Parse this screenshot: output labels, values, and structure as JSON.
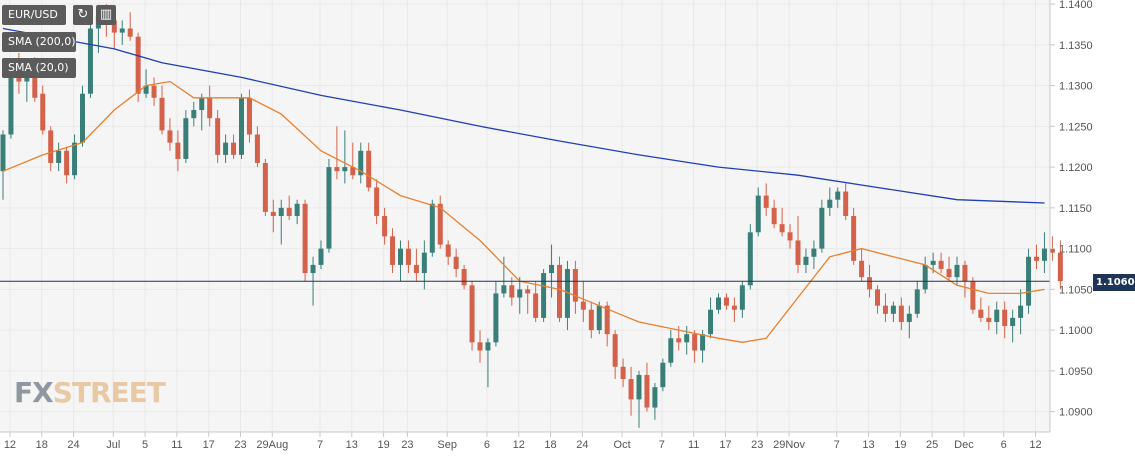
{
  "toolbar": {
    "symbol": "EUR/USD",
    "indicators": [
      "SMA (200,0)",
      "SMA (20,0)"
    ]
  },
  "logo": {
    "part1": "FX",
    "part2": "STREET"
  },
  "current_price_label": "1.1060",
  "colors": {
    "up": "#3a7f77",
    "down": "#d4614a",
    "sma200": "#1f3fb2",
    "sma20": "#e8802f",
    "price_line": "#1f3557",
    "grid": "#e9e9e9"
  },
  "chart_data": {
    "type": "candlestick",
    "ylim": [
      1.0875,
      1.1405
    ],
    "yticks": [
      "1.1400",
      "1.1350",
      "1.1300",
      "1.1250",
      "1.1200",
      "1.1150",
      "1.1100",
      "1.1050",
      "1.1000",
      "1.0950",
      "1.0900"
    ],
    "xticks": [
      {
        "label": "12",
        "i": 1
      },
      {
        "label": "18",
        "i": 5
      },
      {
        "label": "24",
        "i": 9
      },
      {
        "label": "Jul",
        "i": 14
      },
      {
        "label": "5",
        "i": 18
      },
      {
        "label": "11",
        "i": 22
      },
      {
        "label": "17",
        "i": 26
      },
      {
        "label": "23",
        "i": 30
      },
      {
        "label": "29Aug",
        "i": 34
      },
      {
        "label": "7",
        "i": 40
      },
      {
        "label": "13",
        "i": 44
      },
      {
        "label": "19",
        "i": 48
      },
      {
        "label": "23",
        "i": 51
      },
      {
        "label": "Sep",
        "i": 56
      },
      {
        "label": "6",
        "i": 61
      },
      {
        "label": "12",
        "i": 65
      },
      {
        "label": "18",
        "i": 69
      },
      {
        "label": "24",
        "i": 73
      },
      {
        "label": "Oct",
        "i": 78
      },
      {
        "label": "7",
        "i": 83
      },
      {
        "label": "11",
        "i": 87
      },
      {
        "label": "17",
        "i": 91
      },
      {
        "label": "23",
        "i": 95
      },
      {
        "label": "29Nov",
        "i": 99
      },
      {
        "label": "7",
        "i": 105
      },
      {
        "label": "13",
        "i": 109
      },
      {
        "label": "19",
        "i": 113
      },
      {
        "label": "25",
        "i": 117
      },
      {
        "label": "Dec",
        "i": 121
      },
      {
        "label": "6",
        "i": 126
      },
      {
        "label": "12",
        "i": 130
      }
    ],
    "current_price": 1.106,
    "candles": [
      [
        1.1195,
        1.1245,
        1.116,
        1.124
      ],
      [
        1.124,
        1.133,
        1.1235,
        1.132
      ],
      [
        1.132,
        1.134,
        1.129,
        1.1305
      ],
      [
        1.1305,
        1.133,
        1.128,
        1.1325
      ],
      [
        1.1325,
        1.1335,
        1.128,
        1.1285
      ],
      [
        1.129,
        1.13,
        1.124,
        1.1245
      ],
      [
        1.1245,
        1.125,
        1.1195,
        1.1205
      ],
      [
        1.1205,
        1.123,
        1.1195,
        1.122
      ],
      [
        1.122,
        1.1225,
        1.118,
        1.119
      ],
      [
        1.119,
        1.124,
        1.1185,
        1.123
      ],
      [
        1.123,
        1.13,
        1.1225,
        1.129
      ],
      [
        1.129,
        1.138,
        1.1285,
        1.137
      ],
      [
        1.137,
        1.1395,
        1.134,
        1.1385
      ],
      [
        1.1385,
        1.14,
        1.136,
        1.138
      ],
      [
        1.138,
        1.1385,
        1.1345,
        1.1365
      ],
      [
        1.1365,
        1.138,
        1.135,
        1.137
      ],
      [
        1.137,
        1.139,
        1.1355,
        1.136
      ],
      [
        1.136,
        1.1365,
        1.128,
        1.129
      ],
      [
        1.129,
        1.132,
        1.1285,
        1.13
      ],
      [
        1.13,
        1.131,
        1.1275,
        1.1285
      ],
      [
        1.1285,
        1.13,
        1.124,
        1.1245
      ],
      [
        1.1245,
        1.126,
        1.122,
        1.123
      ],
      [
        1.123,
        1.1245,
        1.1195,
        1.121
      ],
      [
        1.121,
        1.127,
        1.1205,
        1.126
      ],
      [
        1.126,
        1.128,
        1.125,
        1.127
      ],
      [
        1.127,
        1.129,
        1.1245,
        1.1285
      ],
      [
        1.1285,
        1.13,
        1.125,
        1.126
      ],
      [
        1.126,
        1.127,
        1.1205,
        1.1215
      ],
      [
        1.1215,
        1.124,
        1.1205,
        1.123
      ],
      [
        1.123,
        1.124,
        1.121,
        1.1215
      ],
      [
        1.1215,
        1.129,
        1.121,
        1.1285
      ],
      [
        1.1285,
        1.1295,
        1.123,
        1.124
      ],
      [
        1.124,
        1.125,
        1.12,
        1.1205
      ],
      [
        1.1205,
        1.121,
        1.114,
        1.1145
      ],
      [
        1.1145,
        1.116,
        1.112,
        1.114
      ],
      [
        1.114,
        1.116,
        1.1105,
        1.115
      ],
      [
        1.115,
        1.1165,
        1.1135,
        1.114
      ],
      [
        1.114,
        1.116,
        1.113,
        1.1155
      ],
      [
        1.1155,
        1.116,
        1.106,
        1.107
      ],
      [
        1.107,
        1.109,
        1.103,
        1.108
      ],
      [
        1.108,
        1.111,
        1.1075,
        1.11
      ],
      [
        1.11,
        1.121,
        1.1095,
        1.12
      ],
      [
        1.12,
        1.125,
        1.1185,
        1.1195
      ],
      [
        1.1195,
        1.1245,
        1.118,
        1.12
      ],
      [
        1.12,
        1.123,
        1.1185,
        1.119
      ],
      [
        1.119,
        1.123,
        1.118,
        1.122
      ],
      [
        1.122,
        1.123,
        1.117,
        1.1175
      ],
      [
        1.1175,
        1.1185,
        1.113,
        1.114
      ],
      [
        1.114,
        1.115,
        1.1105,
        1.1115
      ],
      [
        1.1115,
        1.1125,
        1.107,
        1.108
      ],
      [
        1.108,
        1.111,
        1.106,
        1.11
      ],
      [
        1.11,
        1.111,
        1.107,
        1.108
      ],
      [
        1.108,
        1.11,
        1.106,
        1.107
      ],
      [
        1.107,
        1.111,
        1.105,
        1.1095
      ],
      [
        1.1095,
        1.116,
        1.109,
        1.1155
      ],
      [
        1.1155,
        1.1165,
        1.11,
        1.1105
      ],
      [
        1.1105,
        1.111,
        1.108,
        1.109
      ],
      [
        1.109,
        1.11,
        1.1065,
        1.1075
      ],
      [
        1.1075,
        1.108,
        1.105,
        1.1055
      ],
      [
        1.1055,
        1.106,
        1.0975,
        1.0985
      ],
      [
        1.0985,
        1.1,
        1.096,
        1.0975
      ],
      [
        1.0975,
        1.099,
        1.093,
        1.0985
      ],
      [
        1.0985,
        1.106,
        1.098,
        1.1045
      ],
      [
        1.1045,
        1.109,
        1.104,
        1.1055
      ],
      [
        1.1055,
        1.1065,
        1.103,
        1.104
      ],
      [
        1.104,
        1.1065,
        1.102,
        1.105
      ],
      [
        1.105,
        1.1055,
        1.102,
        1.1045
      ],
      [
        1.1045,
        1.106,
        1.101,
        1.1015
      ],
      [
        1.1015,
        1.1075,
        1.101,
        1.107
      ],
      [
        1.107,
        1.1105,
        1.104,
        1.108
      ],
      [
        1.108,
        1.109,
        1.101,
        1.1015
      ],
      [
        1.1015,
        1.1085,
        1.1,
        1.1075
      ],
      [
        1.1075,
        1.1085,
        1.102,
        1.1035
      ],
      [
        1.1035,
        1.106,
        1.101,
        1.1025
      ],
      [
        1.1025,
        1.1035,
        1.099,
        1.1
      ],
      [
        1.1,
        1.1035,
        1.0995,
        1.103
      ],
      [
        1.103,
        1.1035,
        1.098,
        1.0995
      ],
      [
        1.0995,
        1.1,
        1.094,
        1.0955
      ],
      [
        1.0955,
        1.0965,
        1.093,
        1.094
      ],
      [
        1.094,
        1.0955,
        1.0895,
        1.0915
      ],
      [
        1.0915,
        1.095,
        1.088,
        1.0945
      ],
      [
        1.0945,
        1.096,
        1.09,
        1.0905
      ],
      [
        1.0905,
        1.0935,
        1.089,
        1.093
      ],
      [
        1.093,
        1.0965,
        1.0925,
        1.096
      ],
      [
        1.096,
        1.1,
        1.0955,
        1.099
      ],
      [
        1.099,
        1.1005,
        1.0975,
        1.0985
      ],
      [
        1.0985,
        1.1005,
        1.097,
        1.0995
      ],
      [
        1.0995,
        1.1,
        1.096,
        1.0975
      ],
      [
        1.0975,
        1.1,
        1.096,
        1.0995
      ],
      [
        1.0995,
        1.104,
        1.099,
        1.1025
      ],
      [
        1.1025,
        1.1045,
        1.102,
        1.104
      ],
      [
        1.104,
        1.1045,
        1.1025,
        1.103
      ],
      [
        1.103,
        1.104,
        1.101,
        1.1025
      ],
      [
        1.1025,
        1.106,
        1.1015,
        1.1055
      ],
      [
        1.1055,
        1.113,
        1.105,
        1.112
      ],
      [
        1.112,
        1.1175,
        1.1115,
        1.1165
      ],
      [
        1.1165,
        1.118,
        1.114,
        1.115
      ],
      [
        1.115,
        1.116,
        1.1125,
        1.113
      ],
      [
        1.113,
        1.115,
        1.1115,
        1.112
      ],
      [
        1.112,
        1.113,
        1.11,
        1.111
      ],
      [
        1.111,
        1.114,
        1.107,
        1.108
      ],
      [
        1.108,
        1.11,
        1.107,
        1.109
      ],
      [
        1.109,
        1.111,
        1.1075,
        1.11
      ],
      [
        1.11,
        1.116,
        1.1095,
        1.115
      ],
      [
        1.115,
        1.1175,
        1.114,
        1.116
      ],
      [
        1.116,
        1.1175,
        1.115,
        1.117
      ],
      [
        1.117,
        1.118,
        1.1135,
        1.114
      ],
      [
        1.114,
        1.115,
        1.108,
        1.1085
      ],
      [
        1.1085,
        1.11,
        1.106,
        1.1065
      ],
      [
        1.1065,
        1.108,
        1.104,
        1.105
      ],
      [
        1.105,
        1.1055,
        1.102,
        1.103
      ],
      [
        1.103,
        1.1045,
        1.101,
        1.102
      ],
      [
        1.102,
        1.1035,
        1.101,
        1.103
      ],
      [
        1.103,
        1.104,
        1.1,
        1.101
      ],
      [
        1.101,
        1.103,
        1.099,
        1.102
      ],
      [
        1.102,
        1.106,
        1.1015,
        1.105
      ],
      [
        1.105,
        1.109,
        1.1045,
        1.108
      ],
      [
        1.108,
        1.1095,
        1.107,
        1.1085
      ],
      [
        1.1085,
        1.1095,
        1.107,
        1.1075
      ],
      [
        1.1075,
        1.109,
        1.106,
        1.1065
      ],
      [
        1.1065,
        1.109,
        1.1055,
        1.108
      ],
      [
        1.108,
        1.1085,
        1.104,
        1.106
      ],
      [
        1.106,
        1.1065,
        1.102,
        1.1025
      ],
      [
        1.1025,
        1.104,
        1.101,
        1.1015
      ],
      [
        1.1015,
        1.103,
        1.1,
        1.101
      ],
      [
        1.101,
        1.1035,
        1.0995,
        1.1025
      ],
      [
        1.1025,
        1.1035,
        1.099,
        1.1005
      ],
      [
        1.1005,
        1.1025,
        1.0985,
        1.1015
      ],
      [
        1.1015,
        1.105,
        1.0995,
        1.103
      ],
      [
        1.103,
        1.11,
        1.102,
        1.109
      ],
      [
        1.109,
        1.1105,
        1.1075,
        1.1085
      ],
      [
        1.1085,
        1.112,
        1.107,
        1.11
      ],
      [
        1.11,
        1.1115,
        1.1085,
        1.1095
      ],
      [
        1.1095,
        1.111,
        1.105,
        1.106
      ]
    ],
    "series": [
      {
        "name": "SMA (200,0)",
        "values": [
          [
            0,
            1.137
          ],
          [
            14,
            1.1345
          ],
          [
            20,
            1.1328
          ],
          [
            30,
            1.131
          ],
          [
            40,
            1.1288
          ],
          [
            50,
            1.127
          ],
          [
            60,
            1.125
          ],
          [
            70,
            1.1232
          ],
          [
            80,
            1.1215
          ],
          [
            90,
            1.12
          ],
          [
            100,
            1.119
          ],
          [
            110,
            1.1175
          ],
          [
            120,
            1.116
          ],
          [
            131,
            1.1156
          ]
        ]
      },
      {
        "name": "SMA (20,0)",
        "values": [
          [
            0,
            1.1195
          ],
          [
            5,
            1.1215
          ],
          [
            10,
            1.123
          ],
          [
            14,
            1.127
          ],
          [
            18,
            1.13
          ],
          [
            21,
            1.1305
          ],
          [
            24,
            1.1285
          ],
          [
            28,
            1.1285
          ],
          [
            31,
            1.1285
          ],
          [
            35,
            1.1265
          ],
          [
            40,
            1.122
          ],
          [
            45,
            1.1195
          ],
          [
            50,
            1.1165
          ],
          [
            55,
            1.115
          ],
          [
            60,
            1.111
          ],
          [
            65,
            1.106
          ],
          [
            70,
            1.105
          ],
          [
            75,
            1.103
          ],
          [
            80,
            1.101
          ],
          [
            85,
            1.1
          ],
          [
            90,
            1.099
          ],
          [
            93,
            1.0985
          ],
          [
            96,
            1.099
          ],
          [
            100,
            1.104
          ],
          [
            104,
            1.109
          ],
          [
            108,
            1.11
          ],
          [
            112,
            1.109
          ],
          [
            116,
            1.108
          ],
          [
            120,
            1.1055
          ],
          [
            124,
            1.1045
          ],
          [
            128,
            1.1045
          ],
          [
            131,
            1.105
          ]
        ]
      }
    ]
  }
}
